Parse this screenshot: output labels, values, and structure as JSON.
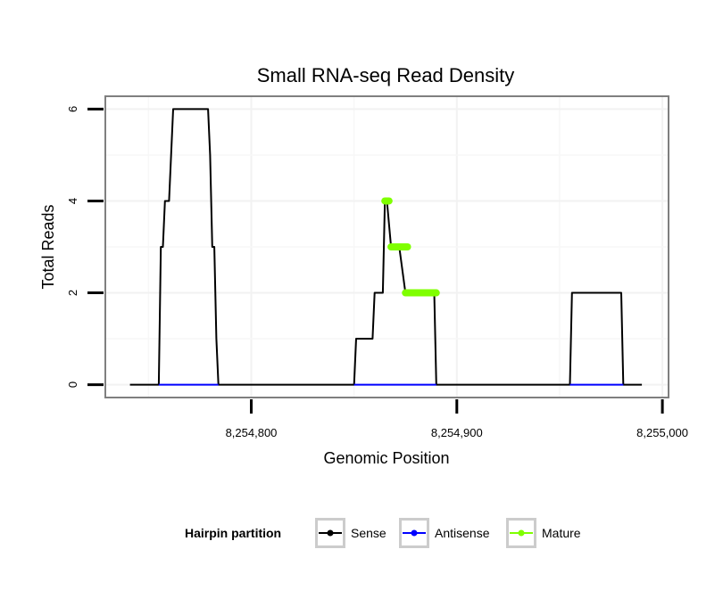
{
  "chart_data": {
    "type": "line",
    "title": "Small RNA-seq Read Density",
    "xlabel": "Genomic Position",
    "ylabel": "Total Reads",
    "xlim": [
      8254729,
      8255003
    ],
    "ylim": [
      -0.28,
      6.28
    ],
    "x_ticks": [
      {
        "value": 8254800,
        "label": "8,254,800"
      },
      {
        "value": 8254900,
        "label": "8,254,900"
      },
      {
        "value": 8255000,
        "label": "8,255,000"
      }
    ],
    "y_ticks": [
      {
        "value": 0,
        "label": "0"
      },
      {
        "value": 2,
        "label": "2"
      },
      {
        "value": 4,
        "label": "4"
      },
      {
        "value": 6,
        "label": "6"
      }
    ],
    "grid": true,
    "legend": {
      "position": "bottom",
      "title": "Hairpin partition",
      "entries": [
        "Sense",
        "Antisense",
        "Mature"
      ]
    },
    "series": [
      {
        "name": "Sense",
        "color": "#000000",
        "points": [
          [
            8254741,
            0
          ],
          [
            8254755,
            0
          ],
          [
            8254756,
            3
          ],
          [
            8254757,
            3
          ],
          [
            8254758,
            4
          ],
          [
            8254760,
            4
          ],
          [
            8254762,
            6
          ],
          [
            8254779,
            6
          ],
          [
            8254780,
            5
          ],
          [
            8254781,
            3
          ],
          [
            8254782,
            3
          ],
          [
            8254783,
            1
          ],
          [
            8254784,
            0
          ],
          [
            8254850,
            0
          ],
          [
            8254851,
            1
          ],
          [
            8254859,
            1
          ],
          [
            8254860,
            2
          ],
          [
            8254864,
            2
          ],
          [
            8254865,
            4
          ],
          [
            8254866,
            4
          ],
          [
            8254868,
            3
          ],
          [
            8254872,
            3
          ],
          [
            8254875,
            2
          ],
          [
            8254889,
            2
          ],
          [
            8254890,
            0
          ],
          [
            8254955,
            0
          ],
          [
            8254956,
            2
          ],
          [
            8254980,
            2
          ],
          [
            8254981,
            0
          ],
          [
            8254990,
            0
          ]
        ]
      },
      {
        "name": "Antisense",
        "color": "#0000ff",
        "points": [
          [
            8254755,
            0
          ],
          [
            8254784,
            0
          ],
          [
            8254850,
            0
          ],
          [
            8254890,
            0
          ],
          [
            8254955,
            0
          ],
          [
            8254981,
            0
          ]
        ]
      },
      {
        "name": "Mature",
        "color": "#7fff00",
        "segments": [
          {
            "x_start": 8254865,
            "x_end": 8254867,
            "y": 4
          },
          {
            "x_start": 8254868,
            "x_end": 8254876,
            "y": 3
          },
          {
            "x_start": 8254875,
            "x_end": 8254890,
            "y": 2
          }
        ]
      }
    ]
  }
}
